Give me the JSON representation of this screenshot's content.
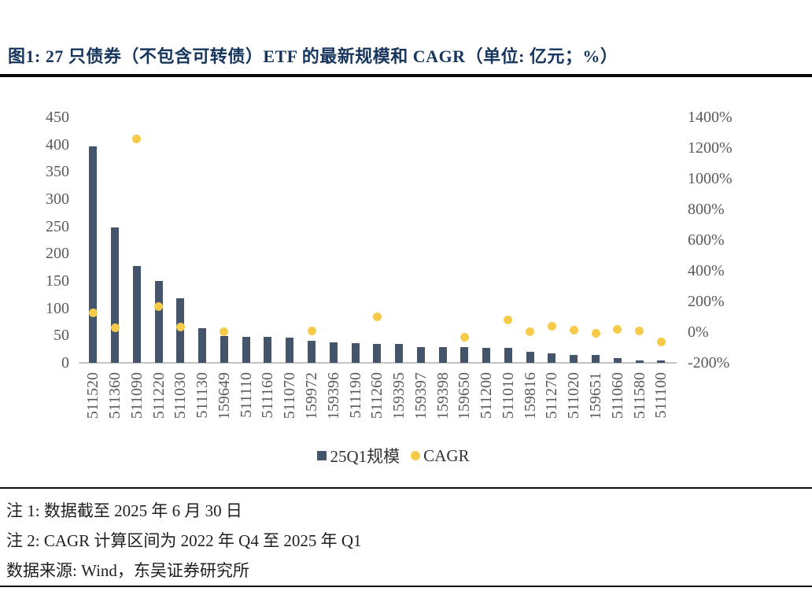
{
  "title": "图1:  27 只债券（不包含可转债）ETF 的最新规模和 CAGR（单位:  亿元；%）",
  "legend": {
    "bars": "25Q1规模",
    "dots": "CAGR"
  },
  "notes": [
    "注 1:  数据截至 2025 年 6 月 30 日",
    "注 2:  CAGR 计算区间为 2022 年 Q4 至 2025 年 Q1",
    "数据来源:  Wind，东吴证券研究所"
  ],
  "colors": {
    "bar": "#44546A",
    "dot": "#F6CB4A",
    "title": "#17365D",
    "axis_text": "#595959",
    "note_text": "#1F1F1F"
  },
  "chart_data": {
    "type": "bar",
    "subtype": "bar-left-axis with scatter-right-axis combo",
    "title": "27 只债券（不包含可转债）ETF 的最新规模和 CAGR（单位: 亿元；%）",
    "categories": [
      "511520",
      "511360",
      "511090",
      "511220",
      "511030",
      "511130",
      "159649",
      "511110",
      "511160",
      "511070",
      "159972",
      "159396",
      "511190",
      "511260",
      "159395",
      "159397",
      "159398",
      "159650",
      "511200",
      "511010",
      "159816",
      "511270",
      "511020",
      "159651",
      "511060",
      "511580",
      "511100"
    ],
    "series": [
      {
        "name": "25Q1规模",
        "type": "bar",
        "axis": "left",
        "unit": "亿元",
        "values": [
          396,
          248,
          177,
          150,
          118,
          64,
          49,
          47,
          47,
          46,
          41,
          38,
          36,
          34,
          34,
          29,
          29,
          29,
          28,
          27,
          20,
          18,
          14,
          15,
          9,
          5,
          4
        ]
      },
      {
        "name": "CAGR",
        "type": "scatter",
        "axis": "right",
        "unit": "%",
        "values": [
          125,
          30,
          1260,
          165,
          35,
          null,
          5,
          null,
          null,
          null,
          10,
          null,
          null,
          100,
          null,
          null,
          null,
          -32,
          null,
          80,
          3,
          41,
          11,
          -6,
          19,
          6,
          -63
        ]
      }
    ],
    "left_axis": {
      "min": 0,
      "max": 450,
      "step": 50,
      "ticks": [
        "0",
        "50",
        "100",
        "150",
        "200",
        "250",
        "300",
        "350",
        "400",
        "450"
      ]
    },
    "right_axis": {
      "min": -200,
      "max": 1400,
      "step": 200,
      "suffix": "%",
      "ticks": [
        "-200%",
        "0%",
        "200%",
        "400%",
        "600%",
        "800%",
        "1000%",
        "1200%",
        "1400%"
      ]
    },
    "grid": false,
    "legend_position": "bottom-center"
  }
}
